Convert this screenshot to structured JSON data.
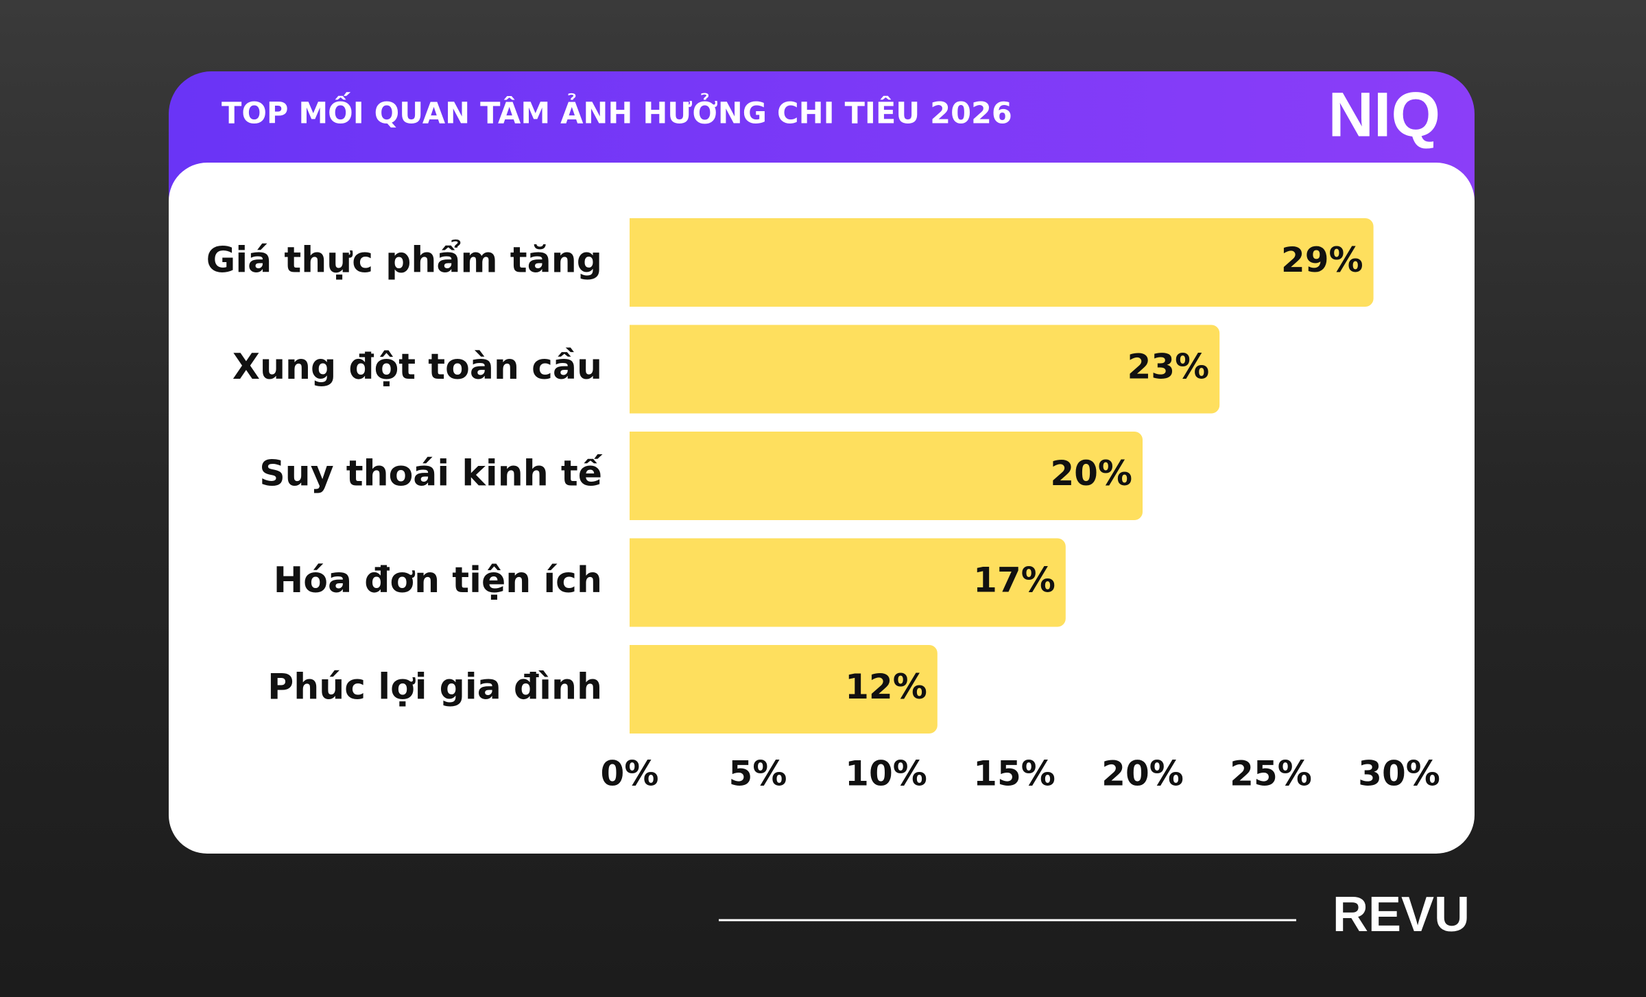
{
  "chart_data": {
    "type": "bar",
    "orientation": "horizontal",
    "title": "TOP MỐI QUAN TÂM ẢNH HƯỞNG CHI TIÊU 2026",
    "brand": "NIQ",
    "source_brand": "REVU",
    "categories": [
      "Giá thực phẩm tăng",
      "Xung đột toàn cầu",
      "Suy thoái kinh tế",
      "Hóa đơn tiện ích",
      "Phúc lợi gia đình"
    ],
    "values": [
      29,
      23,
      20,
      17,
      12
    ],
    "value_labels": [
      "29%",
      "23%",
      "20%",
      "17%",
      "12%"
    ],
    "color": "#fedf5e",
    "xlim": [
      0,
      30
    ],
    "xticks": [
      {
        "value": 0,
        "label": "0%"
      },
      {
        "value": 5,
        "label": "5%"
      },
      {
        "value": 10,
        "label": "10%"
      },
      {
        "value": 15,
        "label": "15%"
      },
      {
        "value": 20,
        "label": "20%"
      },
      {
        "value": 25,
        "label": "25%"
      },
      {
        "value": 30,
        "label": "30%"
      }
    ],
    "grid": false
  }
}
